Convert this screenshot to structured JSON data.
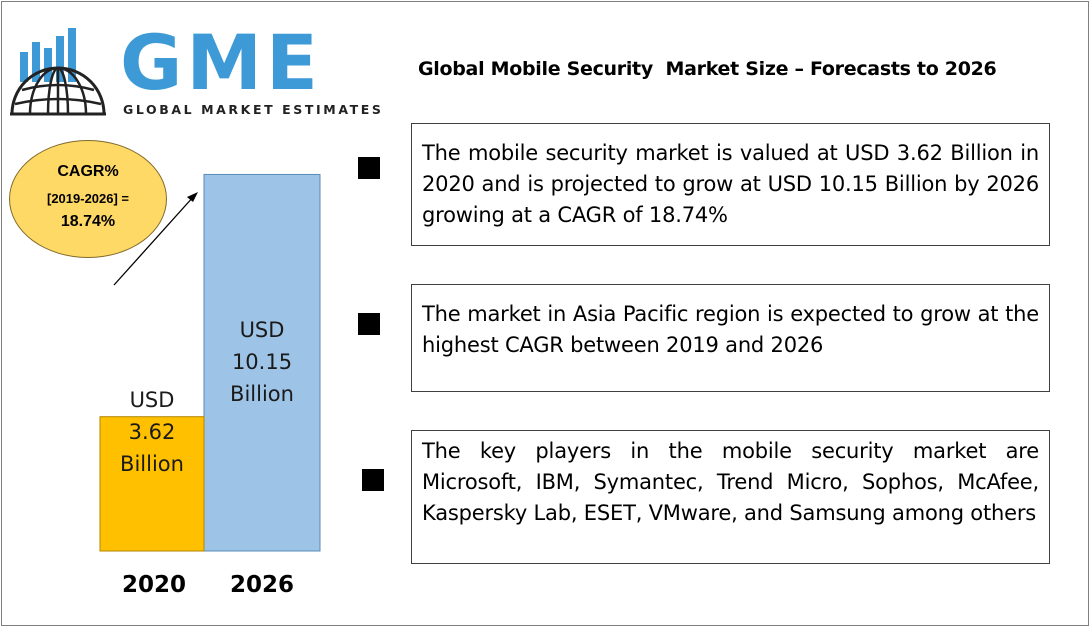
{
  "logo": {
    "letters": "GME",
    "tagline": "GLOBAL MARKET ESTIMATES"
  },
  "title": "Global Mobile Security  Market Size – Forecasts to 2026",
  "cagr": {
    "line1": "CAGR%",
    "line2": "[2019-2026] =",
    "line3": "18.74%"
  },
  "colors": {
    "bar_2020": "#ffc000",
    "bar_2026": "#9dc3e6",
    "logo_blue": "#3d9ad6",
    "cagr_fill": "#ffd966"
  },
  "chart_data": {
    "type": "bar",
    "categories": [
      "2020",
      "2026"
    ],
    "values": [
      3.62,
      10.15
    ],
    "unit": "USD Billion",
    "bar_labels": [
      [
        "USD",
        "3.62",
        "Billion"
      ],
      [
        "USD",
        "10.15",
        "Billion"
      ]
    ],
    "colors": [
      "#ffc000",
      "#9dc3e6"
    ],
    "title": "",
    "xlabel": "",
    "ylabel": "",
    "grid": false
  },
  "points": [
    {
      "icon": "square-bullet-icon",
      "text": "The mobile security market is valued at USD 3.62 Billion in 2020 and is projected to grow at USD 10.15 Billion by 2026 growing at a CAGR of 18.74%"
    },
    {
      "icon": "square-bullet-icon",
      "text": "The market in Asia Pacific region is expected to grow at the highest CAGR between 2019 and 2026"
    },
    {
      "icon": "square-bullet-icon",
      "text": "The key players in the mobile security market are Microsoft, IBM, Symantec, Trend Micro, Sophos, McAfee, Kaspersky Lab, ESET, VMware, and Samsung  among others"
    }
  ]
}
